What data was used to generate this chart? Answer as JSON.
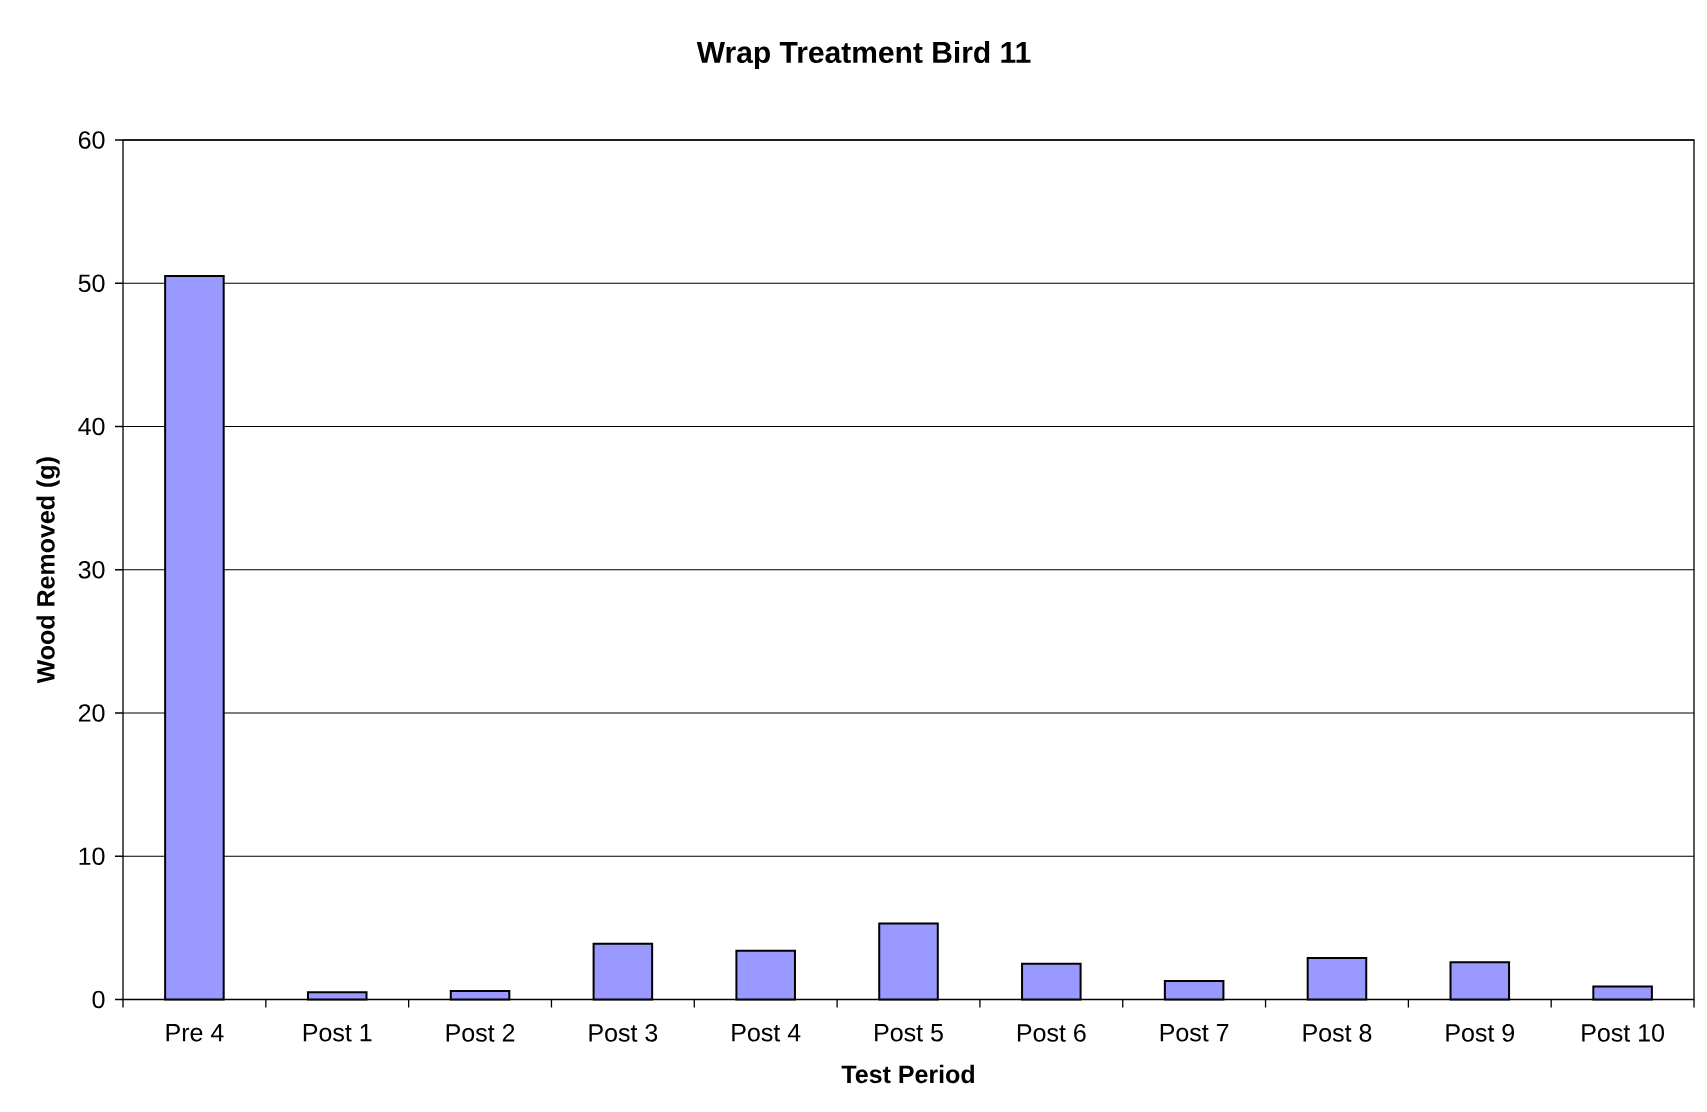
{
  "chart_data": {
    "type": "bar",
    "title": "Wrap Treatment Bird 11",
    "xlabel": "Test Period",
    "ylabel": "Wood Removed (g)",
    "categories": [
      "Pre 4",
      "Post 1",
      "Post 2",
      "Post 3",
      "Post 4",
      "Post 5",
      "Post 6",
      "Post 7",
      "Post 8",
      "Post 9",
      "Post 10"
    ],
    "values": [
      50.5,
      0.5,
      0.6,
      3.9,
      3.4,
      5.3,
      2.5,
      1.3,
      2.9,
      2.6,
      0.9
    ],
    "color": "#9999ff",
    "ylim": [
      0,
      60
    ],
    "yticks": [
      0,
      10,
      20,
      30,
      40,
      50,
      60
    ],
    "grid": "y"
  }
}
